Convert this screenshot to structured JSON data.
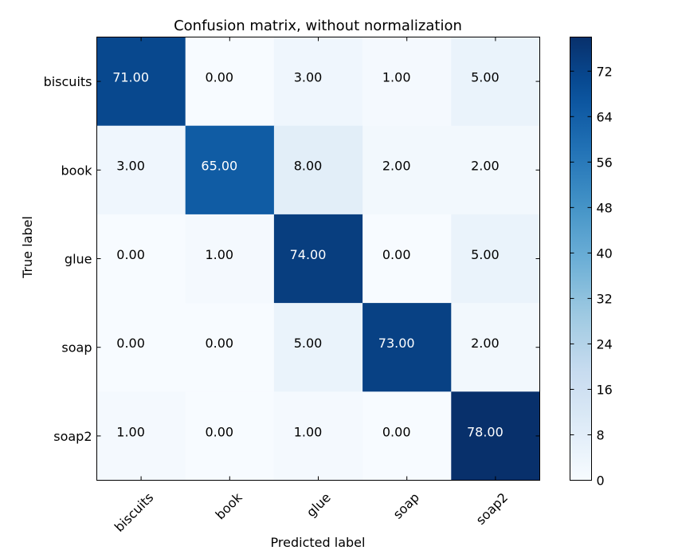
{
  "chart_data": {
    "type": "heatmap",
    "title": "Confusion matrix, without normalization",
    "xlabel": "Predicted label",
    "ylabel": "True label",
    "x_categories": [
      "biscuits",
      "book",
      "glue",
      "soap",
      "soap2"
    ],
    "y_categories": [
      "biscuits",
      "book",
      "glue",
      "soap",
      "soap2"
    ],
    "values": [
      [
        71,
        0,
        3,
        1,
        5
      ],
      [
        3,
        65,
        8,
        2,
        2
      ],
      [
        0,
        1,
        74,
        0,
        5
      ],
      [
        0,
        0,
        5,
        73,
        2
      ],
      [
        1,
        0,
        1,
        0,
        78
      ]
    ],
    "cell_labels": [
      [
        "71.00",
        "0.00",
        "3.00",
        "1.00",
        "5.00"
      ],
      [
        "3.00",
        "65.00",
        "8.00",
        "2.00",
        "2.00"
      ],
      [
        "0.00",
        "1.00",
        "74.00",
        "0.00",
        "5.00"
      ],
      [
        "0.00",
        "0.00",
        "5.00",
        "73.00",
        "2.00"
      ],
      [
        "1.00",
        "0.00",
        "1.00",
        "0.00",
        "78.00"
      ]
    ],
    "colormap": "Blues",
    "colorbar": {
      "min": 0,
      "max": 78,
      "ticks": [
        0,
        8,
        16,
        24,
        32,
        40,
        48,
        56,
        64,
        72
      ],
      "tick_labels": [
        "0",
        "8",
        "16",
        "24",
        "32",
        "40",
        "48",
        "56",
        "64",
        "72"
      ]
    },
    "x_tick_rotation_deg": 45,
    "grid": false
  }
}
